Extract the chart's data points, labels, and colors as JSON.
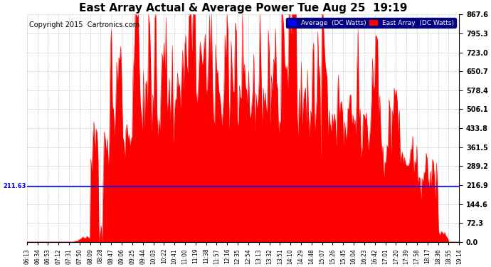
{
  "title": "East Array Actual & Average Power Tue Aug 25  19:19",
  "copyright": "Copyright 2015  Cartronics.com",
  "ymax": 867.6,
  "ymin": 0.0,
  "yticks": [
    0.0,
    72.3,
    144.6,
    216.9,
    289.2,
    361.5,
    433.8,
    506.1,
    578.4,
    650.7,
    723.0,
    795.3,
    867.6
  ],
  "average_line": 211.63,
  "average_label": "211.63",
  "legend_avg_label": "Average  (DC Watts)",
  "legend_east_label": "East Array  (DC Watts)",
  "avg_color": "#0000FF",
  "east_color": "#FF0000",
  "east_fill_color": "#FF0000",
  "bg_color": "#FFFFFF",
  "grid_color": "#BBBBBB",
  "title_fontsize": 11,
  "copyright_fontsize": 7,
  "xtick_labels": [
    "06:13",
    "06:34",
    "06:53",
    "07:12",
    "07:31",
    "07:50",
    "08:09",
    "08:28",
    "08:47",
    "09:06",
    "09:25",
    "09:44",
    "10:03",
    "10:22",
    "10:41",
    "11:00",
    "11:19",
    "11:38",
    "11:57",
    "12:16",
    "12:35",
    "12:54",
    "13:13",
    "13:32",
    "13:51",
    "14:10",
    "14:29",
    "14:48",
    "15:07",
    "15:26",
    "15:45",
    "16:04",
    "16:23",
    "16:42",
    "17:01",
    "17:20",
    "17:39",
    "17:58",
    "18:17",
    "18:36",
    "18:55",
    "19:14"
  ],
  "num_ticks": 42,
  "figwidth": 6.9,
  "figheight": 3.75,
  "dpi": 100
}
